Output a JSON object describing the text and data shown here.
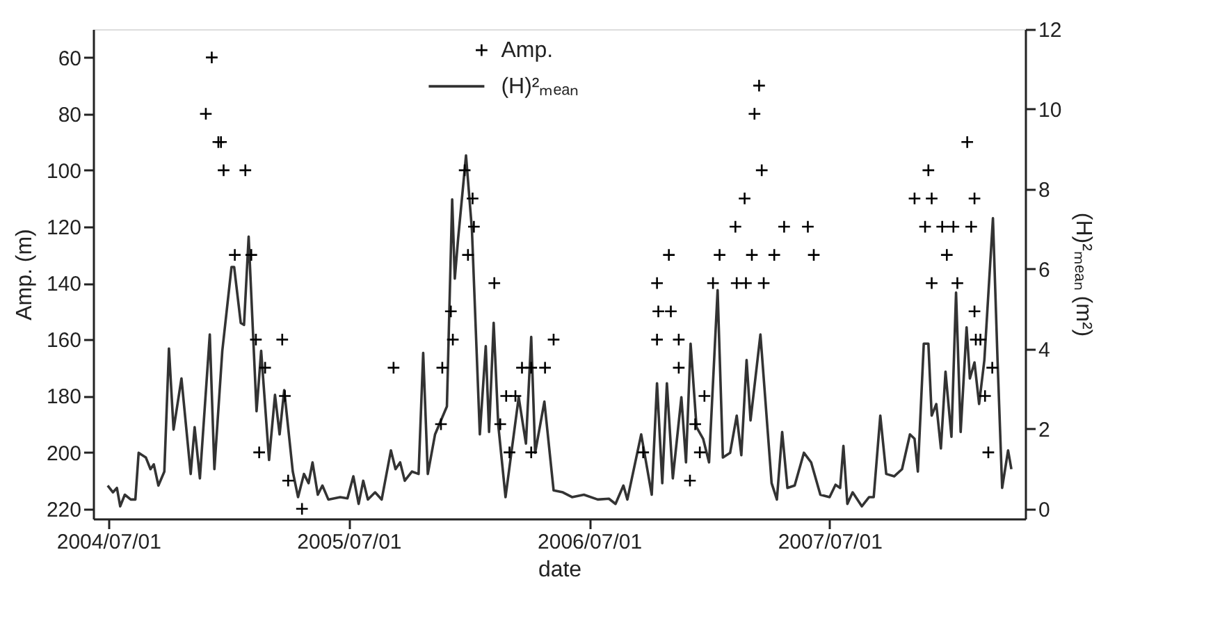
{
  "chart_data": {
    "type": "scatter",
    "xlabel": "date",
    "ylabel": "Amp. (m)",
    "y2label": "(H)²ₘₑₐₙ (m²)",
    "xlim": [
      "2004-06-08",
      "2008-04-23"
    ],
    "xticks": [
      {
        "value": "2004-07-01",
        "label": "2004/07/01"
      },
      {
        "value": "2005-07-01",
        "label": "2005/07/01"
      },
      {
        "value": "2006-07-01",
        "label": "2006/07/01"
      },
      {
        "value": "2007-07-01",
        "label": "2007/07/01"
      }
    ],
    "ylim": [
      223.5,
      50
    ],
    "yticks": [
      60,
      80,
      100,
      120,
      140,
      160,
      180,
      200,
      220
    ],
    "y2lim": [
      -0.25,
      12
    ],
    "y2ticks": [
      0,
      2,
      4,
      6,
      8,
      10,
      12
    ],
    "legend": "top",
    "grid": false,
    "series": [
      {
        "name": "Amp.",
        "marker": "cross",
        "color": "#000000",
        "x": [
          "2004-11-26",
          "2004-12-05",
          "2004-12-15",
          "2004-12-19",
          "2004-12-23",
          "2005-01-09",
          "2005-01-25",
          "2005-02-03",
          "2005-02-10",
          "2005-02-15",
          "2005-02-24",
          "2005-03-22",
          "2005-03-26",
          "2005-03-31",
          "2005-04-21",
          "2005-09-07",
          "2005-11-18",
          "2005-11-20",
          "2005-12-03",
          "2005-12-06",
          "2005-12-24",
          "2005-12-29",
          "2006-01-05",
          "2006-01-07",
          "2006-02-07",
          "2006-02-16",
          "2006-02-25",
          "2006-03-02",
          "2006-03-11",
          "2006-03-21",
          "2006-04-04",
          "2006-04-04",
          "2006-04-25",
          "2006-05-08",
          "2006-09-21",
          "2006-10-12",
          "2006-10-12",
          "2006-10-14",
          "2006-10-30",
          "2006-11-02",
          "2006-11-14",
          "2006-11-14",
          "2006-12-01",
          "2006-12-09",
          "2006-12-16",
          "2006-12-23",
          "2007-01-05",
          "2007-01-15",
          "2007-02-08",
          "2007-02-10",
          "2007-02-22",
          "2007-02-24",
          "2007-03-05",
          "2007-03-09",
          "2007-03-16",
          "2007-03-20",
          "2007-03-23",
          "2007-04-08",
          "2007-04-23",
          "2007-05-29",
          "2007-06-07",
          "2007-11-07",
          "2007-11-23",
          "2007-11-28",
          "2007-12-03",
          "2007-12-03",
          "2007-12-19",
          "2007-12-26",
          "2008-01-05",
          "2008-01-11",
          "2008-01-26",
          "2008-02-01",
          "2008-02-06",
          "2008-02-06",
          "2008-02-08",
          "2008-02-15",
          "2008-02-22",
          "2008-02-27",
          "2008-03-04"
        ],
        "values": [
          80,
          60,
          90,
          90,
          100,
          130,
          100,
          130,
          160,
          200,
          170,
          160,
          180,
          210,
          220,
          170,
          190,
          170,
          150,
          160,
          100,
          130,
          110,
          120,
          140,
          190,
          180,
          200,
          180,
          170,
          170,
          200,
          170,
          160,
          200,
          140,
          160,
          150,
          130,
          150,
          160,
          170,
          210,
          190,
          200,
          180,
          140,
          130,
          120,
          140,
          110,
          140,
          130,
          80,
          70,
          100,
          140,
          130,
          120,
          120,
          130,
          110,
          120,
          100,
          110,
          140,
          120,
          130,
          120,
          140,
          90,
          120,
          110,
          150,
          160,
          160,
          180,
          200,
          170
        ]
      },
      {
        "name": "(H)²ₘₑₐₙ",
        "type": "line",
        "axis": "y2",
        "line_style": "solid",
        "color": "#333333",
        "x": [
          "2004-06-30",
          "2004-07-08",
          "2004-07-14",
          "2004-07-19",
          "2004-07-26",
          "2004-08-04",
          "2004-08-11",
          "2004-08-16",
          "2004-08-27",
          "2004-09-03",
          "2004-09-08",
          "2004-09-15",
          "2004-09-24",
          "2004-10-01",
          "2004-10-08",
          "2004-10-20",
          "2004-11-03",
          "2004-11-09",
          "2004-11-17",
          "2004-12-02",
          "2004-12-09",
          "2004-12-21",
          "2005-01-04",
          "2005-01-08",
          "2005-01-18",
          "2005-01-23",
          "2005-01-30",
          "2005-02-03",
          "2005-02-11",
          "2005-02-18",
          "2005-03-02",
          "2005-03-11",
          "2005-03-18",
          "2005-03-25",
          "2005-04-07",
          "2005-04-15",
          "2005-04-24",
          "2005-05-01",
          "2005-05-07",
          "2005-05-15",
          "2005-05-22",
          "2005-05-31",
          "2005-06-18",
          "2005-06-29",
          "2005-07-08",
          "2005-07-16",
          "2005-07-23",
          "2005-07-30",
          "2005-08-10",
          "2005-08-20",
          "2005-09-03",
          "2005-09-10",
          "2005-09-17",
          "2005-09-24",
          "2005-10-05",
          "2005-10-15",
          "2005-10-22",
          "2005-10-29",
          "2005-11-09",
          "2005-11-27",
          "2005-12-05",
          "2005-12-09",
          "2005-12-14",
          "2005-12-26",
          "2006-01-04",
          "2006-01-16",
          "2006-01-25",
          "2006-01-30",
          "2006-02-06",
          "2006-02-13",
          "2006-02-24",
          "2006-03-16",
          "2006-03-27",
          "2006-04-04",
          "2006-04-10",
          "2006-04-24",
          "2006-05-08",
          "2006-05-22",
          "2006-06-05",
          "2006-06-23",
          "2006-07-14",
          "2006-07-31",
          "2006-08-10",
          "2006-08-22",
          "2006-08-28",
          "2006-09-18",
          "2006-10-04",
          "2006-10-12",
          "2006-10-20",
          "2006-10-27",
          "2006-11-05",
          "2006-11-18",
          "2006-11-25",
          "2006-12-02",
          "2006-12-11",
          "2006-12-21",
          "2006-12-30",
          "2007-01-12",
          "2007-01-20",
          "2007-01-31",
          "2007-02-10",
          "2007-02-17",
          "2007-02-25",
          "2007-03-03",
          "2007-03-18",
          "2007-04-04",
          "2007-04-12",
          "2007-04-20",
          "2007-04-28",
          "2007-05-09",
          "2007-05-23",
          "2007-06-03",
          "2007-06-17",
          "2007-07-01",
          "2007-07-10",
          "2007-07-17",
          "2007-07-22",
          "2007-07-28",
          "2007-08-05",
          "2007-08-19",
          "2007-08-30",
          "2007-09-06",
          "2007-09-16",
          "2007-09-25",
          "2007-10-07",
          "2007-10-19",
          "2007-10-31",
          "2007-11-07",
          "2007-11-12",
          "2007-11-21",
          "2007-11-28",
          "2007-12-03",
          "2007-12-10",
          "2007-12-17",
          "2007-12-24",
          "2008-01-02",
          "2008-01-09",
          "2008-01-16",
          "2008-01-25",
          "2008-01-30",
          "2008-02-06",
          "2008-02-13",
          "2008-02-21",
          "2008-03-05",
          "2008-03-12",
          "2008-03-19",
          "2008-03-28",
          "2008-04-02"
        ],
        "values": [
          0.58,
          0.41,
          0.52,
          0.06,
          0.35,
          0.23,
          0.23,
          1.4,
          1.28,
          0.99,
          1.11,
          0.58,
          0.93,
          4.01,
          1.98,
          3.26,
          0.87,
          2.04,
          0.76,
          4.36,
          0.99,
          3.95,
          6.05,
          6.05,
          4.65,
          4.6,
          6.81,
          5.35,
          2.44,
          3.95,
          1.22,
          2.85,
          1.86,
          2.97,
          0.93,
          0.29,
          0.87,
          0.64,
          1.16,
          0.35,
          0.58,
          0.23,
          0.29,
          0.26,
          0.81,
          0.12,
          0.7,
          0.23,
          0.41,
          0.23,
          1.46,
          0.99,
          1.16,
          0.7,
          0.93,
          0.87,
          3.9,
          0.87,
          1.86,
          2.56,
          7.74,
          5.76,
          6.75,
          8.84,
          6.98,
          1.86,
          4.07,
          1.92,
          4.65,
          2.09,
          0.29,
          2.79,
          1.63,
          4.3,
          1.4,
          2.68,
          0.46,
          0.41,
          0.29,
          0.35,
          0.23,
          0.25,
          0.12,
          0.58,
          0.23,
          1.86,
          0.35,
          3.14,
          0.64,
          3.14,
          0.76,
          2.79,
          1.16,
          4.13,
          2.04,
          1.75,
          1.16,
          5.47,
          1.28,
          1.4,
          2.33,
          1.34,
          3.72,
          2.21,
          4.36,
          0.64,
          0.23,
          1.92,
          0.52,
          0.58,
          1.4,
          1.16,
          0.35,
          0.29,
          0.6,
          0.52,
          1.57,
          0.12,
          0.41,
          0.06,
          0.29,
          0.29,
          2.33,
          0.87,
          0.81,
          0.99,
          1.86,
          1.75,
          0.93,
          4.13,
          4.13,
          2.33,
          2.62,
          1.51,
          3.43,
          1.8,
          5.41,
          1.92,
          4.54,
          3.26,
          3.66,
          2.62,
          3.72,
          7.27,
          3.72,
          0.52,
          1.46,
          0.99
        ]
      }
    ]
  }
}
